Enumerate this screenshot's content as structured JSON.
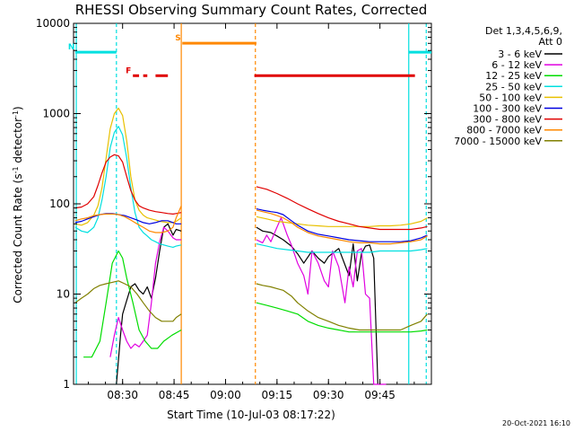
{
  "chart_data": {
    "type": "line",
    "title": "RHESSI Observing Summary Count Rates, Corrected",
    "xlabel": "Start Time (10-Jul-03 08:17:22)",
    "ylabel": "Corrected Count Rate (s⁻¹ detector⁻¹)",
    "ylabel_main": "Corrected Count Rate (s",
    "ylabel_sup1": "-1",
    "ylabel_mid": " detector",
    "ylabel_sup2": "-1",
    "ylabel_end": ")",
    "yscale": "log",
    "ylim": [
      1,
      10000
    ],
    "xlim": [
      8.2617,
      10.0
    ],
    "x_ticks": [
      {
        "v": 8.5,
        "label": "08:30"
      },
      {
        "v": 8.75,
        "label": "08:45"
      },
      {
        "v": 9.0,
        "label": "09:00"
      },
      {
        "v": 9.25,
        "label": "09:15"
      },
      {
        "v": 9.5,
        "label": "09:30"
      },
      {
        "v": 9.75,
        "label": "09:45"
      }
    ],
    "y_ticks": [
      {
        "v": 1,
        "label": "1"
      },
      {
        "v": 10,
        "label": "10"
      },
      {
        "v": 100,
        "label": "100"
      },
      {
        "v": 1000,
        "label": "1000"
      },
      {
        "v": 10000,
        "label": "10000"
      }
    ],
    "legend_header": [
      "Det 1,3,4,5,6,9,",
      "Att 0"
    ],
    "footer_date": "20-Oct-2021 16:10",
    "series": [
      {
        "name": "3 - 6 keV",
        "color": "#000000",
        "segments": [
          {
            "t": [
              8.47,
              8.49,
              8.5,
              8.52,
              8.54,
              8.56,
              8.58,
              8.6,
              8.62,
              8.64,
              8.66,
              8.68,
              8.7,
              8.72,
              8.745,
              8.76,
              8.785
            ],
            "v": [
              1.0,
              3.5,
              6.0,
              8.5,
              12.0,
              13.0,
              11.0,
              10.0,
              12.0,
              9.0,
              15.0,
              30.0,
              55.0,
              60.0,
              45.0,
              52.0,
              50.0
            ]
          },
          {
            "t": [
              9.15,
              9.18,
              9.22,
              9.25,
              9.28,
              9.32,
              9.35,
              9.38,
              9.42,
              9.45,
              9.48,
              9.5,
              9.55,
              9.6,
              9.62,
              9.64,
              9.66,
              9.68,
              9.7,
              9.72,
              9.74
            ],
            "v": [
              55,
              50,
              48,
              44,
              40,
              34,
              28,
              22,
              30,
              25,
              22,
              26,
              32,
              16,
              36,
              14,
              28,
              34,
              35,
              25,
              1.0
            ]
          }
        ]
      },
      {
        "name": "6 - 12 keV",
        "color": "#e000e0",
        "segments": [
          {
            "t": [
              8.44,
              8.46,
              8.48,
              8.5,
              8.52,
              8.54,
              8.56,
              8.58,
              8.6,
              8.62,
              8.64,
              8.66,
              8.68,
              8.7,
              8.72,
              8.745,
              8.76,
              8.785
            ],
            "v": [
              2.0,
              3.5,
              5.5,
              4.0,
              3.0,
              2.5,
              2.8,
              2.6,
              3.0,
              3.5,
              8.0,
              22,
              38,
              55,
              50,
              42,
              40,
              40
            ]
          },
          {
            "t": [
              9.15,
              9.18,
              9.2,
              9.22,
              9.25,
              9.27,
              9.3,
              9.32,
              9.35,
              9.38,
              9.4,
              9.42,
              9.45,
              9.48,
              9.5,
              9.52,
              9.55,
              9.58,
              9.6,
              9.62,
              9.64,
              9.66,
              9.68,
              9.7,
              9.72,
              9.74,
              9.76,
              9.78
            ],
            "v": [
              40,
              37,
              45,
              38,
              55,
              70,
              45,
              35,
              22,
              16,
              10,
              30,
              22,
              14,
              12,
              30,
              20,
              8,
              20,
              12,
              30,
              32,
              10,
              9,
              1.0,
              1.0,
              1.0,
              1.0
            ]
          }
        ]
      },
      {
        "name": "12 - 25 keV",
        "color": "#00dd00",
        "segments": [
          {
            "t": [
              8.31,
              8.35,
              8.39,
              8.42,
              8.45,
              8.48,
              8.5,
              8.52,
              8.55,
              8.58,
              8.61,
              8.64,
              8.67,
              8.7,
              8.74,
              8.785
            ],
            "v": [
              2.0,
              2.0,
              3.0,
              8.0,
              22,
              30,
              25,
              15,
              8,
              4,
              3,
              2.5,
              2.5,
              3,
              3.5,
              4
            ]
          },
          {
            "t": [
              9.15,
              9.2,
              9.25,
              9.3,
              9.35,
              9.4,
              9.45,
              9.5,
              9.55,
              9.6,
              9.65,
              9.7,
              9.75,
              9.8,
              9.85,
              9.9,
              9.95,
              9.98
            ],
            "v": [
              8,
              7.5,
              7,
              6.5,
              6,
              5,
              4.5,
              4.2,
              4,
              3.8,
              3.8,
              3.8,
              3.8,
              3.8,
              3.8,
              3.8,
              3.9,
              4
            ]
          }
        ]
      },
      {
        "name": "25 - 50 keV",
        "color": "#00e0e0",
        "segments": [
          {
            "t": [
              8.27,
              8.3,
              8.33,
              8.36,
              8.38,
              8.4,
              8.42,
              8.44,
              8.46,
              8.48,
              8.5,
              8.52,
              8.54,
              8.56,
              8.58,
              8.6,
              8.62,
              8.64,
              8.66,
              8.68,
              8.7,
              8.72,
              8.745,
              8.76,
              8.785
            ],
            "v": [
              55,
              50,
              48,
              55,
              70,
              110,
              200,
              420,
              620,
              720,
              580,
              320,
              150,
              80,
              55,
              48,
              44,
              40,
              38,
              36,
              35,
              34,
              33,
              34,
              35
            ]
          },
          {
            "t": [
              9.15,
              9.2,
              9.25,
              9.3,
              9.35,
              9.4,
              9.45,
              9.5,
              9.55,
              9.6,
              9.65,
              9.7,
              9.75,
              9.8,
              9.85,
              9.9,
              9.95,
              9.98
            ],
            "v": [
              36,
              34,
              32,
              31,
              30,
              29,
              29,
              29,
              29,
              29,
              29,
              29,
              30,
              30,
              30,
              30,
              31,
              32
            ]
          }
        ]
      },
      {
        "name": "50 - 100 keV",
        "color": "#e8c000",
        "segments": [
          {
            "t": [
              8.27,
              8.3,
              8.33,
              8.36,
              8.38,
              8.4,
              8.42,
              8.44,
              8.46,
              8.48,
              8.5,
              8.52,
              8.54,
              8.56,
              8.58,
              8.6,
              8.62,
              8.64,
              8.66,
              8.68,
              8.7,
              8.72,
              8.745,
              8.76,
              8.785
            ],
            "v": [
              60,
              58,
              62,
              75,
              95,
              150,
              320,
              680,
              1000,
              1150,
              950,
              500,
              200,
              110,
              85,
              75,
              70,
              68,
              66,
              64,
              63,
              62,
              62,
              64,
              70
            ]
          },
          {
            "t": [
              9.15,
              9.2,
              9.25,
              9.3,
              9.35,
              9.4,
              9.45,
              9.5,
              9.55,
              9.6,
              9.65,
              9.7,
              9.75,
              9.8,
              9.85,
              9.9,
              9.95,
              9.98
            ],
            "v": [
              72,
              68,
              64,
              62,
              60,
              58,
              57,
              56,
              56,
              56,
              56,
              56,
              57,
              57,
              58,
              60,
              64,
              70
            ]
          }
        ]
      },
      {
        "name": "100 - 300 keV",
        "color": "#0000e0",
        "segments": [
          {
            "t": [
              8.27,
              8.3,
              8.33,
              8.36,
              8.39,
              8.42,
              8.45,
              8.48,
              8.51,
              8.54,
              8.57,
              8.6,
              8.63,
              8.66,
              8.69,
              8.72,
              8.745,
              8.76,
              8.785
            ],
            "v": [
              62,
              64,
              68,
              72,
              76,
              78,
              78,
              76,
              74,
              70,
              66,
              62,
              60,
              62,
              65,
              65,
              62,
              60,
              60
            ]
          },
          {
            "t": [
              9.15,
              9.18,
              9.22,
              9.25,
              9.28,
              9.32,
              9.35,
              9.4,
              9.45,
              9.5,
              9.55,
              9.6,
              9.65,
              9.7,
              9.75,
              9.8,
              9.85,
              9.9,
              9.95,
              9.98
            ],
            "v": [
              88,
              85,
              82,
              80,
              76,
              65,
              58,
              50,
              46,
              44,
              42,
              40,
              39,
              38,
              38,
              38,
              38,
              39,
              42,
              45
            ]
          }
        ]
      },
      {
        "name": "300 - 800 keV",
        "color": "#e00000",
        "segments": [
          {
            "t": [
              8.27,
              8.3,
              8.33,
              8.36,
              8.38,
              8.4,
              8.42,
              8.44,
              8.46,
              8.48,
              8.5,
              8.52,
              8.54,
              8.56,
              8.58,
              8.6,
              8.63,
              8.66,
              8.69,
              8.72,
              8.745,
              8.76,
              8.785
            ],
            "v": [
              90,
              92,
              100,
              120,
              160,
              220,
              290,
              330,
              350,
              340,
              290,
              200,
              140,
              110,
              95,
              90,
              85,
              82,
              80,
              78,
              77,
              78,
              80
            ]
          },
          {
            "t": [
              9.15,
              9.2,
              9.25,
              9.3,
              9.35,
              9.4,
              9.45,
              9.5,
              9.55,
              9.6,
              9.65,
              9.7,
              9.75,
              9.8,
              9.85,
              9.9,
              9.95,
              9.98
            ],
            "v": [
              155,
              145,
              130,
              115,
              100,
              88,
              78,
              70,
              64,
              60,
              56,
              54,
              52,
              52,
              52,
              52,
              54,
              56
            ]
          }
        ]
      },
      {
        "name": "800 - 7000 keV",
        "color": "#ff8800",
        "segments": [
          {
            "t": [
              8.27,
              8.3,
              8.33,
              8.36,
              8.39,
              8.42,
              8.45,
              8.48,
              8.51,
              8.54,
              8.57,
              8.6,
              8.63,
              8.66,
              8.69,
              8.72,
              8.745,
              8.76,
              8.785
            ],
            "v": [
              65,
              68,
              70,
              74,
              76,
              77,
              77,
              76,
              72,
              66,
              60,
              55,
              50,
              48,
              48,
              50,
              55,
              70,
              95
            ]
          },
          {
            "t": [
              9.15,
              9.18,
              9.22,
              9.25,
              9.28,
              9.32,
              9.35,
              9.4,
              9.45,
              9.5,
              9.55,
              9.6,
              9.65,
              9.7,
              9.75,
              9.8,
              9.85,
              9.9,
              9.95,
              9.98
            ],
            "v": [
              85,
              82,
              78,
              74,
              70,
              62,
              55,
              48,
              44,
              42,
              40,
              38,
              37,
              37,
              36,
              36,
              37,
              38,
              40,
              44
            ]
          }
        ]
      },
      {
        "name": "7000 - 15000 keV",
        "color": "#808000",
        "segments": [
          {
            "t": [
              8.27,
              8.3,
              8.33,
              8.36,
              8.39,
              8.42,
              8.45,
              8.48,
              8.51,
              8.54,
              8.57,
              8.6,
              8.63,
              8.66,
              8.69,
              8.72,
              8.745,
              8.76,
              8.785
            ],
            "v": [
              8,
              9,
              10,
              11.5,
              12.5,
              13,
              13.5,
              14,
              13,
              12,
              10,
              8,
              6.5,
              5.5,
              5,
              5,
              5,
              5.5,
              6
            ]
          },
          {
            "t": [
              9.15,
              9.18,
              9.22,
              9.25,
              9.28,
              9.32,
              9.35,
              9.4,
              9.45,
              9.5,
              9.55,
              9.6,
              9.65,
              9.7,
              9.75,
              9.8,
              9.85,
              9.9,
              9.95,
              9.98
            ],
            "v": [
              13,
              12.5,
              12,
              11.5,
              11,
              9.5,
              8,
              6.5,
              5.5,
              5,
              4.5,
              4.2,
              4,
              4,
              4,
              4,
              4,
              4.5,
              5,
              6
            ]
          }
        ]
      }
    ],
    "flags": [
      {
        "label": "N",
        "color": "#00e0e0",
        "segments": [
          [
            8.27,
            8.47
          ],
          [
            9.89,
            10.0
          ]
        ],
        "yfrac": 0.92,
        "dash": false
      },
      {
        "label": "F",
        "color": "#e00000",
        "segments": [
          [
            8.55,
            8.58
          ],
          [
            8.6,
            8.62
          ],
          [
            8.66,
            8.72
          ],
          [
            9.14,
            9.92
          ]
        ],
        "yfrac": 0.855,
        "dash": false
      },
      {
        "label": "S",
        "color": "#ff8800",
        "segments": [
          [
            8.79,
            9.15
          ]
        ],
        "yfrac": 0.945,
        "dash": false
      }
    ],
    "vlines": [
      {
        "t": 8.47,
        "color": "#00e0e0",
        "dash": true
      },
      {
        "t": 8.785,
        "color": "#ff8800",
        "dash": false
      },
      {
        "t": 9.145,
        "color": "#ff8800",
        "dash": true
      },
      {
        "t": 9.89,
        "color": "#00e0e0",
        "dash": false
      },
      {
        "t": 9.975,
        "color": "#00e0e0",
        "dash": true
      },
      {
        "t": 8.275,
        "color": "#00e0e0",
        "dash": false
      }
    ]
  }
}
